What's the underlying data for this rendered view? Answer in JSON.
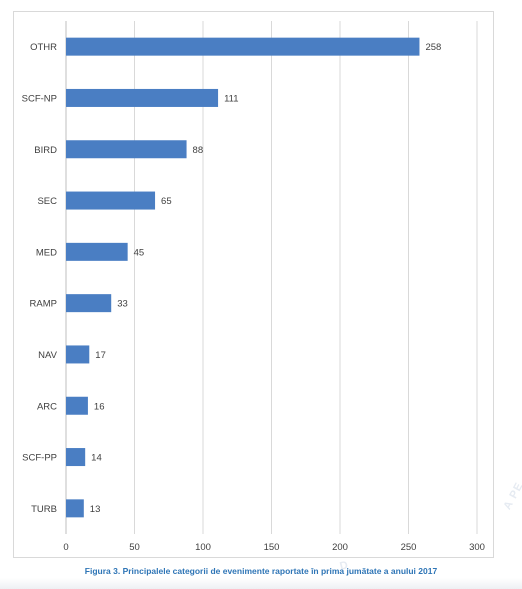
{
  "chart_data": {
    "type": "bar",
    "orientation": "horizontal",
    "categories": [
      "OTHR",
      "SCF-NP",
      "BIRD",
      "SEC",
      "MED",
      "RAMP",
      "NAV",
      "ARC",
      "SCF-PP",
      "TURB"
    ],
    "values": [
      258,
      111,
      88,
      65,
      45,
      33,
      17,
      16,
      14,
      13
    ],
    "data_labels": [
      "258",
      "111",
      "88",
      "65",
      "45",
      "33",
      "17",
      "16",
      "14",
      "13"
    ],
    "x_ticks": [
      "0",
      "50",
      "100",
      "150",
      "200",
      "250",
      "300"
    ],
    "xlim": [
      0,
      300
    ],
    "grid": "vertical",
    "legend": "none",
    "bar_color": "#4a7ec3",
    "grid_color": "#d9d9d9"
  },
  "caption": "Figura 3. Principalele categorii de evenimente raportate în prima jumătate a anului 2017",
  "caption_color": "#2e75b6"
}
